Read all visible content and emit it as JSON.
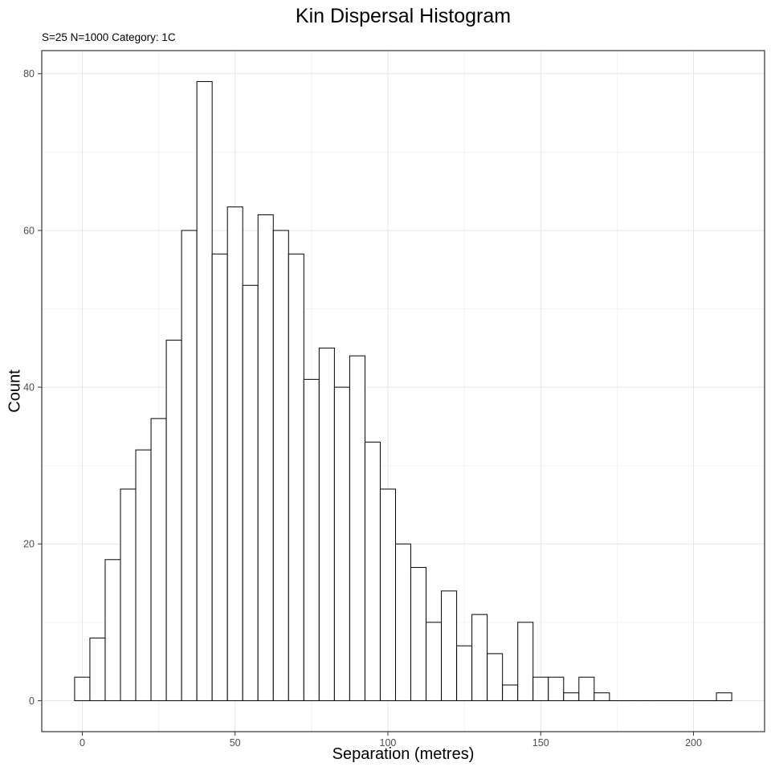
{
  "chart_data": {
    "type": "bar",
    "subtype": "histogram",
    "title": "Kin Dispersal Histogram",
    "subtitle": "S=25 N=1000 Category: 1C",
    "xlabel": "Separation (metres)",
    "ylabel": "Count",
    "n_total": 1000,
    "bin_start": -2.5,
    "bin_width": 5,
    "counts": [
      3,
      8,
      18,
      27,
      32,
      36,
      46,
      60,
      79,
      57,
      63,
      53,
      62,
      60,
      57,
      41,
      45,
      40,
      44,
      33,
      27,
      20,
      17,
      10,
      14,
      7,
      11,
      6,
      2,
      10,
      3,
      3,
      1,
      3,
      1,
      0,
      0,
      0,
      0,
      0,
      0,
      0,
      1
    ],
    "x_ticks": [
      0,
      50,
      100,
      150,
      200
    ],
    "x_minor_ticks": [
      25,
      75,
      125,
      175
    ],
    "y_ticks": [
      0,
      20,
      40,
      60,
      80
    ],
    "y_minor_ticks": [
      10,
      30,
      50,
      70
    ],
    "x_domain": [
      -13.25,
      223.25
    ],
    "y_domain": [
      -3.95,
      82.95
    ],
    "grid": true,
    "legend": "none",
    "bar_fill": "#ffffff",
    "bar_stroke": "#000000",
    "panel_background": "#ffffff",
    "grid_major_color": "#e5e5e5",
    "grid_minor_color": "#f2f2f2",
    "panel_border_color": "#333333",
    "tick_label_color": "#4d4d4d",
    "text_color": "#000000"
  }
}
